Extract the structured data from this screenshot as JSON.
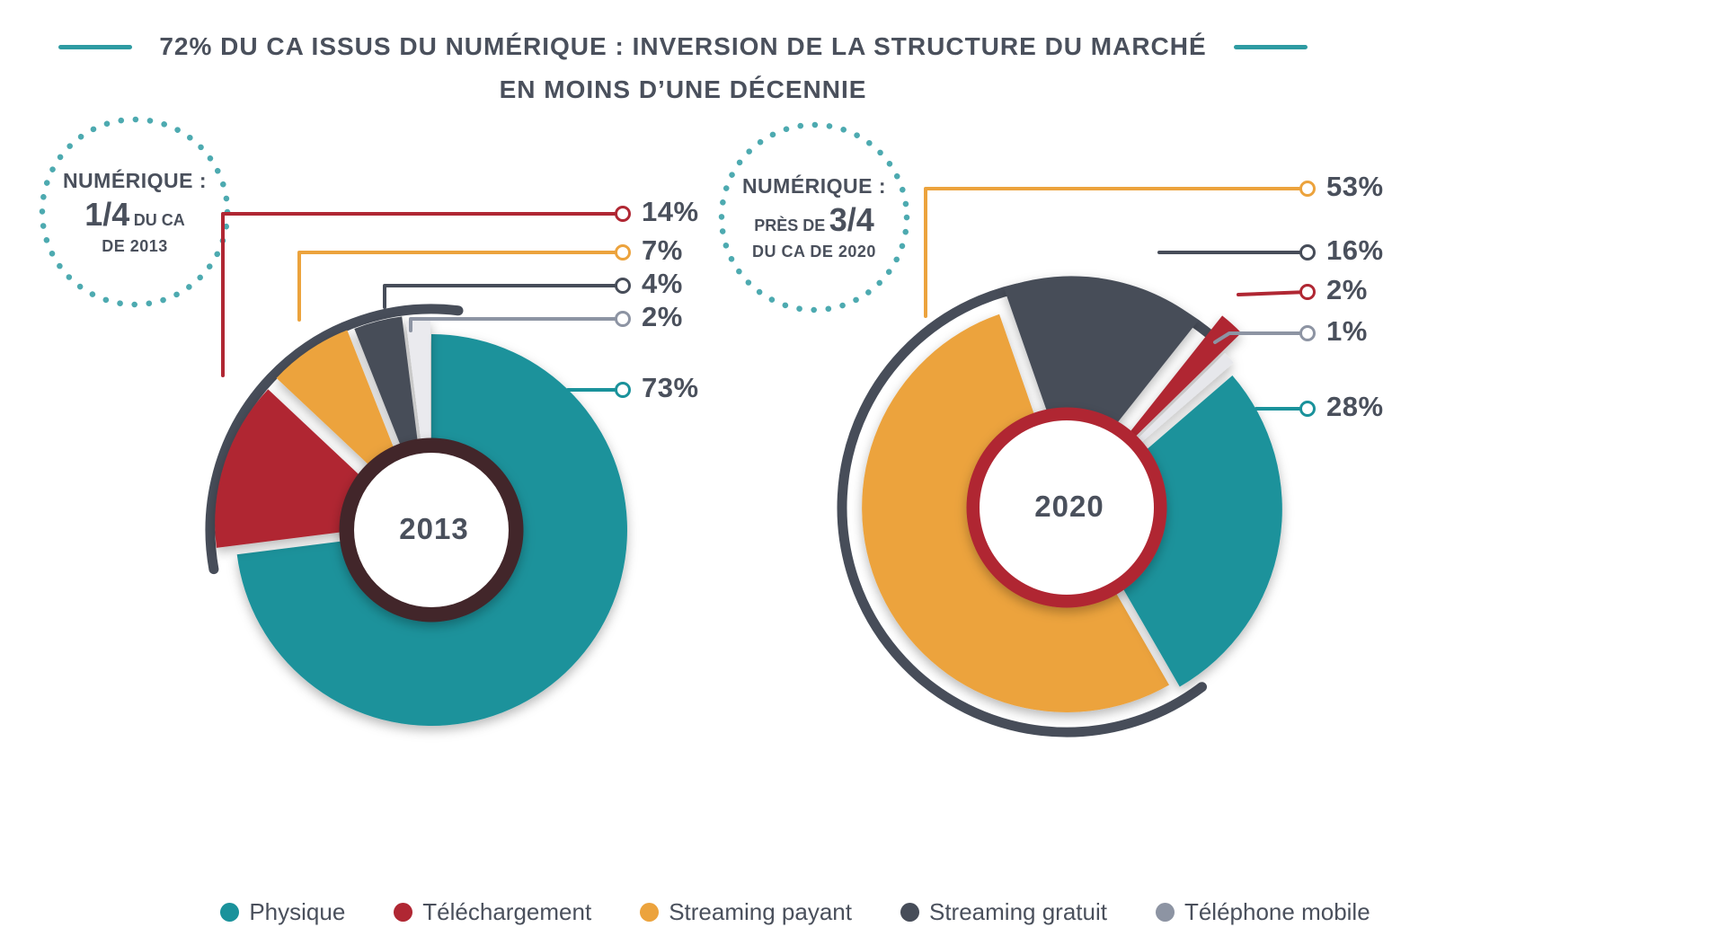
{
  "title": {
    "line1": "72% DU CA ISSUS DU NUMÉRIQUE : INVERSION DE LA STRUCTURE DU MARCHÉ",
    "line2": "EN MOINS D’UNE DÉCENNIE"
  },
  "colors": {
    "teal_accent": "#2E9BA2",
    "slate": "#474D59",
    "text": "#4A505C",
    "physique": "#1A929B",
    "telechargement": "#B02733",
    "streaming_payant": "#ECA33D",
    "streaming_gratuit": "#474D59",
    "telephone_mobile": "#8D94A3"
  },
  "callouts": [
    {
      "heading": "NUMÉRIQUE :",
      "pre": "",
      "fraction": "1/4",
      "post": "DU CA",
      "line3": "DE 2013"
    },
    {
      "heading": "NUMÉRIQUE :",
      "pre": "PRÈS DE",
      "fraction": "3/4",
      "post": "",
      "line3": "DU CA DE 2020"
    }
  ],
  "legend": {
    "items": [
      {
        "label": "Physique",
        "color": "#1A929B"
      },
      {
        "label": "Téléchargement",
        "color": "#B02733"
      },
      {
        "label": "Streaming payant",
        "color": "#ECA33D"
      },
      {
        "label": "Streaming gratuit",
        "color": "#474D59"
      },
      {
        "label": "Téléphone mobile",
        "color": "#8D94A3"
      }
    ]
  },
  "chart_data": [
    {
      "type": "pie",
      "title": "2013",
      "center_label": "2013",
      "unit": "%",
      "total": 100,
      "ring_color": "#42262A",
      "note": "NUMÉRIQUE : 1/4 DU CA DE 2013",
      "segments": [
        {
          "label": "Physique",
          "value": 73,
          "display": "73%",
          "color": "#1A929B",
          "digital": false,
          "exploded": false
        },
        {
          "label": "Téléchargement",
          "value": 14,
          "display": "14%",
          "color": "#B02733",
          "digital": true,
          "exploded": true
        },
        {
          "label": "Streaming payant",
          "value": 7,
          "display": "7%",
          "color": "#ECA33D",
          "digital": true,
          "exploded": true
        },
        {
          "label": "Streaming gratuit",
          "value": 4,
          "display": "4%",
          "color": "#474D59",
          "digital": true,
          "exploded": true
        },
        {
          "label": "Téléphone mobile",
          "value": 2,
          "display": "2%",
          "color": "#8D94A3",
          "fill": "#EAEAEE",
          "digital": true,
          "exploded": true
        }
      ]
    },
    {
      "type": "pie",
      "title": "2020",
      "center_label": "2020",
      "unit": "%",
      "total": 100,
      "ring_color": "#B02733",
      "note": "NUMÉRIQUE : PRÈS DE 3/4 DU CA DE 2020",
      "segments": [
        {
          "label": "Physique",
          "value": 28,
          "display": "28%",
          "color": "#1A929B",
          "digital": false,
          "exploded": true
        },
        {
          "label": "Streaming payant",
          "value": 53,
          "display": "53%",
          "color": "#ECA33D",
          "digital": true,
          "exploded": false
        },
        {
          "label": "Streaming gratuit",
          "value": 16,
          "display": "16%",
          "color": "#474D59",
          "digital": true,
          "exploded": true
        },
        {
          "label": "Téléchargement",
          "value": 2,
          "display": "2%",
          "color": "#B02733",
          "digital": true,
          "exploded": true
        },
        {
          "label": "Téléphone mobile",
          "value": 1,
          "display": "1%",
          "color": "#8D94A3",
          "fill": "#E6E7EB",
          "digital": true,
          "exploded": true
        }
      ]
    }
  ]
}
